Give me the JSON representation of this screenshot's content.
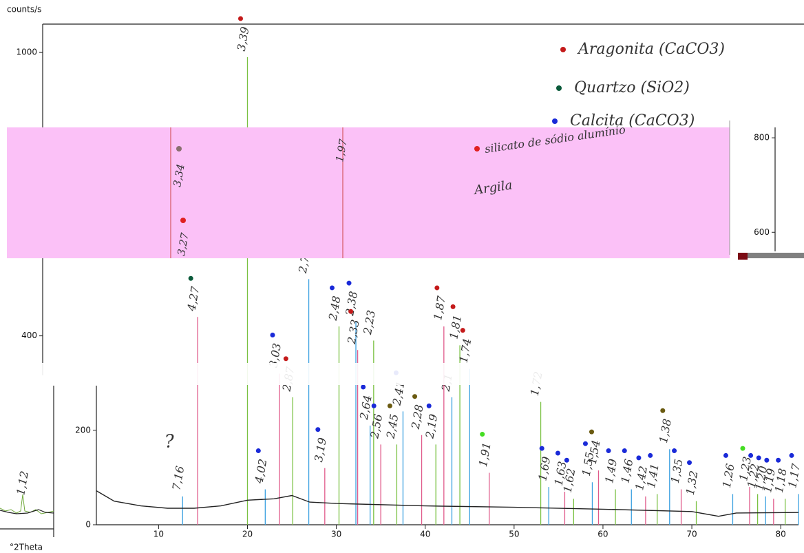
{
  "chart_data": {
    "type": "line",
    "y_label": "counts/s",
    "x_label": "°2Theta",
    "xlim": [
      3,
      82
    ],
    "xticks": [
      10,
      20,
      30,
      40,
      50,
      60,
      70,
      80
    ],
    "ylim": [
      0,
      1060
    ],
    "yticks": [
      0,
      200,
      400,
      1000
    ],
    "y2lim": [
      545,
      822
    ],
    "y2ticks": [
      600,
      800
    ],
    "background": {
      "color": "#222222",
      "x": [
        3,
        5,
        8,
        11,
        14,
        17,
        20,
        23,
        25,
        27,
        30,
        40,
        50,
        60,
        70,
        73,
        75,
        82
      ],
      "values": [
        72,
        50,
        40,
        35,
        35,
        40,
        52,
        55,
        62,
        48,
        45,
        40,
        37,
        33,
        28,
        18,
        25,
        26
      ]
    },
    "peaks": {
      "x": [
        12.7,
        14.4,
        20.0,
        22.0,
        23.6,
        25.1,
        26.9,
        28.7,
        30.3,
        32.2,
        32.4,
        34.2,
        33.8,
        35.0,
        36.8,
        37.5,
        39.6,
        41.2,
        43.0,
        42.1,
        43.9,
        45.0,
        47.2,
        53.0,
        53.9,
        55.7,
        56.7,
        58.8,
        59.5,
        61.4,
        63.2,
        64.8,
        66.1,
        67.5,
        68.8,
        70.5,
        74.6,
        76.5,
        77.4,
        78.3,
        79.2,
        80.5,
        82.0
      ],
      "values": [
        60,
        440,
        990,
        75,
        320,
        270,
        520,
        120,
        420,
        430,
        370,
        390,
        210,
        170,
        170,
        240,
        190,
        170,
        270,
        420,
        380,
        330,
        110,
        260,
        80,
        70,
        55,
        90,
        115,
        75,
        75,
        60,
        65,
        160,
        75,
        50,
        65,
        80,
        65,
        60,
        55,
        55,
        65
      ],
      "labels": [
        "7,16",
        "4,27",
        "3,39",
        "4,02",
        "3,03",
        "2,87",
        "2,7",
        "3,19",
        "2,48",
        "2,38",
        "2,33",
        "2,23",
        "2,64",
        "2,56",
        "2,45",
        "2,41",
        "2,28",
        "2,19",
        "2,1",
        "1,87",
        "1,81",
        "1,74",
        "1,91",
        "1,72",
        "1,69",
        "1,63",
        "1,62",
        "1,55",
        "1,54",
        "1,49",
        "1,46",
        "1,42",
        "1,41",
        "1,38",
        "1,35",
        "1,32",
        "1,26",
        "1,23",
        "1,22",
        "1,20",
        "1,19",
        "1,18",
        "1,17"
      ],
      "dot_colors": [
        null,
        "#0a5a3a",
        "#c41a1a",
        "#1a2ad8",
        "#1a2ad8",
        "#c41a1a",
        null,
        "#1a2ad8",
        "#1a2ad8",
        "#1a2ad8",
        "#c41a1a",
        null,
        "#1a2ad8",
        "#1a2ad8",
        "#6a5a10",
        "#1a2ad8",
        "#6a5a10",
        "#1a2ad8",
        null,
        "#c41a1a",
        "#c41a1a",
        "#c41a1a",
        "#44dd22",
        null,
        "#1a2ad8",
        "#1a2ad8",
        "#1a2ad8",
        "#1a2ad8",
        "#6a5a10",
        "#1a2ad8",
        "#1a2ad8",
        "#1a2ad8",
        "#1a2ad8",
        "#6a5a10",
        "#1a2ad8",
        "#1a2ad8",
        "#1a2ad8",
        "#44dd22",
        "#1a2ad8",
        "#1a2ad8",
        "#1a2ad8",
        "#1a2ad8",
        "#1a2ad8"
      ]
    },
    "legend": [
      {
        "name": "Aragonita (CaCO3)",
        "color": "#c41a1a"
      },
      {
        "name": "Quartzo (SiO2)",
        "color": "#0a5a3a"
      },
      {
        "name": "Calcita (CaCO3)",
        "color": "#1a2ad8"
      }
    ],
    "notes": [
      "3,34",
      "3,27",
      "1,97",
      "silicato de sódio alumínio",
      "Argila",
      "?",
      "1,12"
    ]
  }
}
